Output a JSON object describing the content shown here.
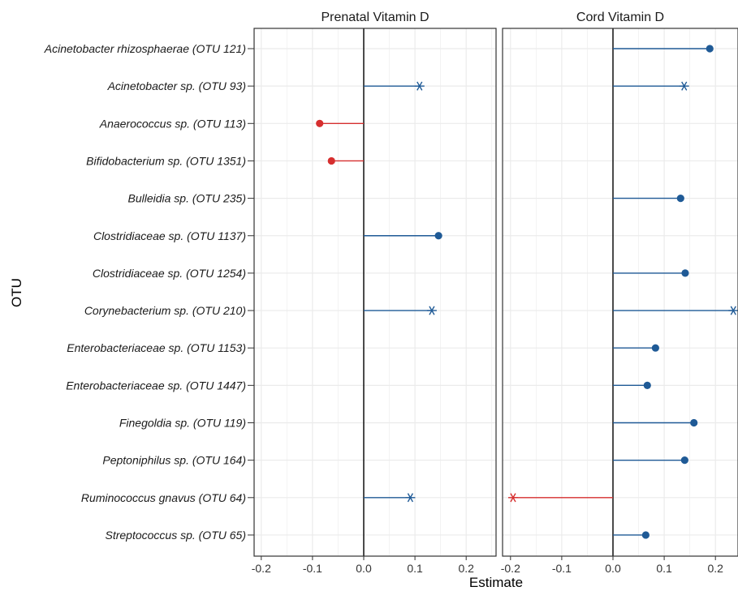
{
  "chart_data": {
    "type": "lollipop",
    "xlabel": "Estimate",
    "ylabel": "OTU",
    "xlim": [
      -0.21,
      0.24
    ],
    "xticks": [
      -0.2,
      -0.1,
      0.0,
      0.1,
      0.2
    ],
    "xtick_labels": [
      "-0.2",
      "-0.1",
      "0.0",
      "0.1",
      "0.2"
    ],
    "grid": true,
    "colors": {
      "positive": "#1f5a96",
      "negative": "#d62e2e",
      "zero_line": "#000000",
      "grid": "#ebebeb"
    },
    "marker_legend": {
      "dot": "circle marker",
      "star": "asterisk marker"
    },
    "categories": [
      "Acinetobacter rhizosphaerae (OTU 121)",
      "Acinetobacter sp. (OTU 93)",
      "Anaerococcus sp. (OTU 113)",
      "Bifidobacterium sp. (OTU 1351)",
      "Bulleidia sp. (OTU 235)",
      "Clostridiaceae sp. (OTU 1137)",
      "Clostridiaceae sp. (OTU 1254)",
      "Corynebacterium sp. (OTU 210)",
      "Enterobacteriaceae sp. (OTU 1153)",
      "Enterobacteriaceae sp. (OTU 1447)",
      "Finegoldia sp. (OTU 119)",
      "Peptoniphilus sp. (OTU 164)",
      "Ruminococcus gnavus (OTU 64)",
      "Streptococcus sp. (OTU 65)"
    ],
    "panels": [
      {
        "title": "Prenatal Vitamin D",
        "values": [
          null,
          0.109,
          -0.086,
          -0.063,
          null,
          0.146,
          null,
          0.133,
          null,
          null,
          null,
          null,
          0.091,
          null
        ],
        "markers": [
          null,
          "star",
          "dot",
          "dot",
          null,
          "dot",
          null,
          "star",
          null,
          null,
          null,
          null,
          "star",
          null
        ]
      },
      {
        "title": "Cord Vitamin D",
        "values": [
          0.189,
          0.139,
          null,
          null,
          0.132,
          null,
          0.141,
          0.235,
          0.083,
          0.067,
          0.158,
          0.14,
          -0.195,
          0.064
        ],
        "markers": [
          "dot",
          "star",
          null,
          null,
          "dot",
          null,
          "dot",
          "star",
          "dot",
          "dot",
          "dot",
          "dot",
          "star",
          "dot"
        ]
      }
    ]
  }
}
